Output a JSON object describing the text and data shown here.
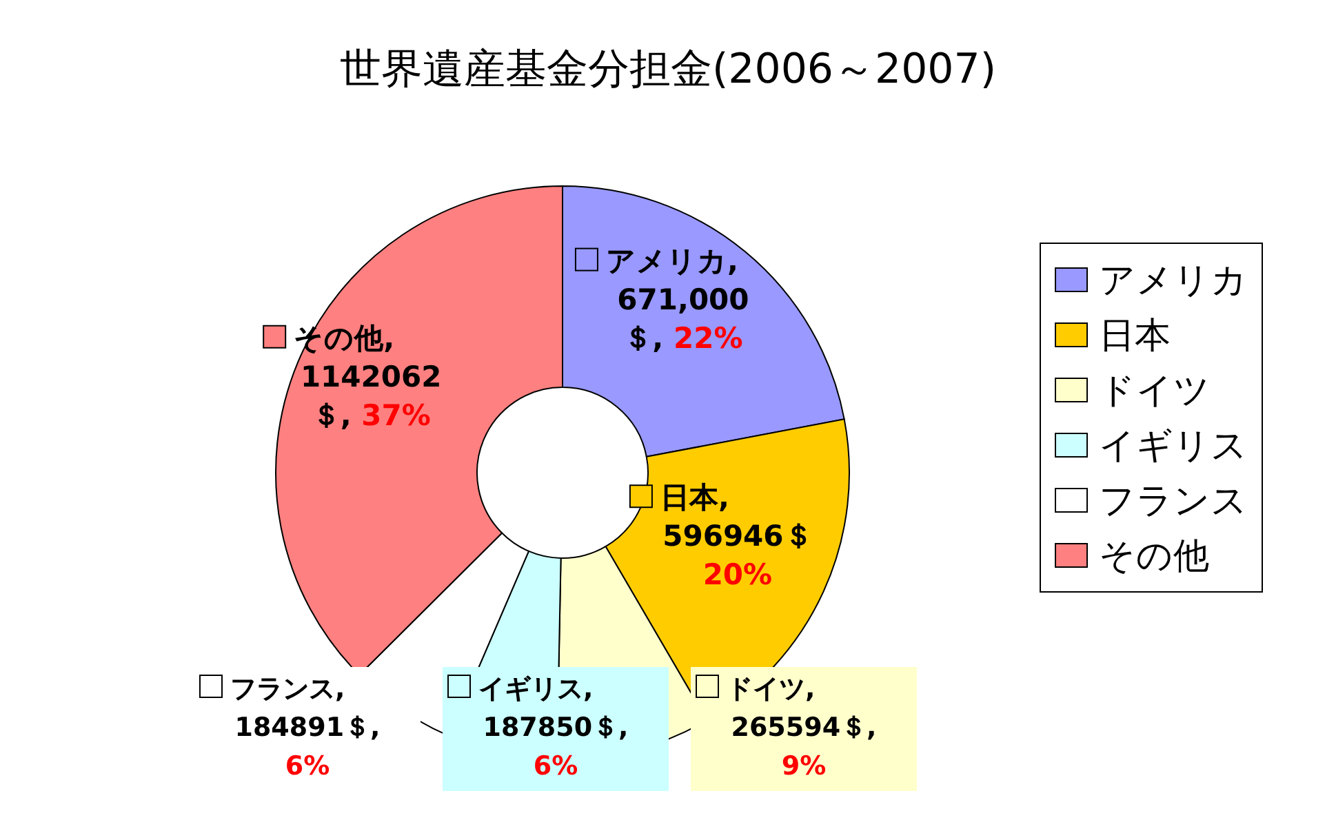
{
  "chart_data": {
    "type": "donut",
    "title": "世界遺産基金分担金(2006～2007)",
    "categories": [
      "アメリカ",
      "日本",
      "ドイツ",
      "イギリス",
      "フランス",
      "その他"
    ],
    "values": [
      671000,
      596946,
      265594,
      187850,
      184891,
      1142062
    ],
    "colors": [
      "#9999ff",
      "#ffcc00",
      "#ffffcc",
      "#ccffff",
      "#ffffff",
      "#ff8080"
    ],
    "value_labels": [
      "アメリカ,\n671,000\n＄, 22%",
      "日本,\n596946＄\n20%",
      "ドイツ,\n265594＄,\n9%",
      "イギリス,\n187850＄,\n6%",
      "フランス,\n184891＄,\n6%",
      "その他,\n1142062\n＄, 37%"
    ],
    "legend": "right"
  }
}
